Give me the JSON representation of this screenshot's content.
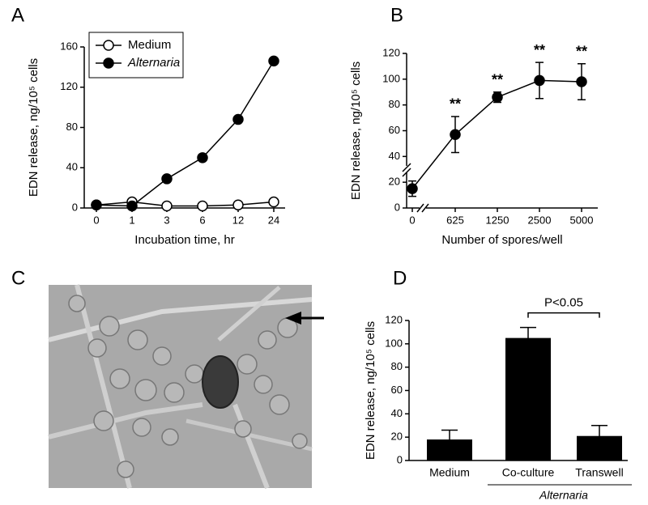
{
  "chart_data": [
    {
      "type": "line",
      "panel": "A",
      "ylabel": "EDN release, ng/10⁵ cells",
      "xlabel": "Incubation time, hr",
      "categories": [
        "0",
        "1",
        "3",
        "6",
        "12",
        "24"
      ],
      "series": [
        {
          "name": "Medium",
          "color": "#ffffff",
          "italic": false,
          "values": [
            3,
            6,
            2,
            2,
            3,
            6
          ]
        },
        {
          "name": "Alternaria",
          "color": "#000000",
          "italic": true,
          "values": [
            3,
            2,
            29,
            50,
            88,
            146
          ]
        }
      ],
      "ylim": [
        0,
        160
      ],
      "yticks": [
        0,
        40,
        80,
        120,
        160
      ]
    },
    {
      "type": "line",
      "panel": "B",
      "ylabel": "EDN release, ng/10⁵ cells",
      "xlabel": "Number of spores/well",
      "categories": [
        "0",
        "625",
        "1250",
        "2500",
        "5000"
      ],
      "series": [
        {
          "name": null,
          "color": "#000000",
          "italic": false,
          "values": [
            15,
            57,
            86,
            99,
            98
          ],
          "errors": [
            6,
            14,
            4,
            14,
            14
          ],
          "significance": [
            null,
            "**",
            "**",
            "**",
            "**"
          ]
        }
      ],
      "ylim": [
        0,
        120
      ],
      "yticks": [
        0,
        20,
        40,
        60,
        80,
        100,
        120
      ]
    },
    {
      "type": "image",
      "panel": "C"
    },
    {
      "type": "bar",
      "panel": "D",
      "ylabel": "EDN release, ng/10⁵ cells",
      "categories": [
        "Medium",
        "Co-culture",
        "Transwell"
      ],
      "values": [
        18,
        105,
        21
      ],
      "errors": [
        8,
        9,
        9
      ],
      "color": "#000000",
      "group_label": "Alternaria",
      "comparison": "P<0.05",
      "ylim": [
        0,
        120
      ],
      "yticks": [
        0,
        20,
        40,
        60,
        80,
        100,
        120
      ]
    }
  ]
}
